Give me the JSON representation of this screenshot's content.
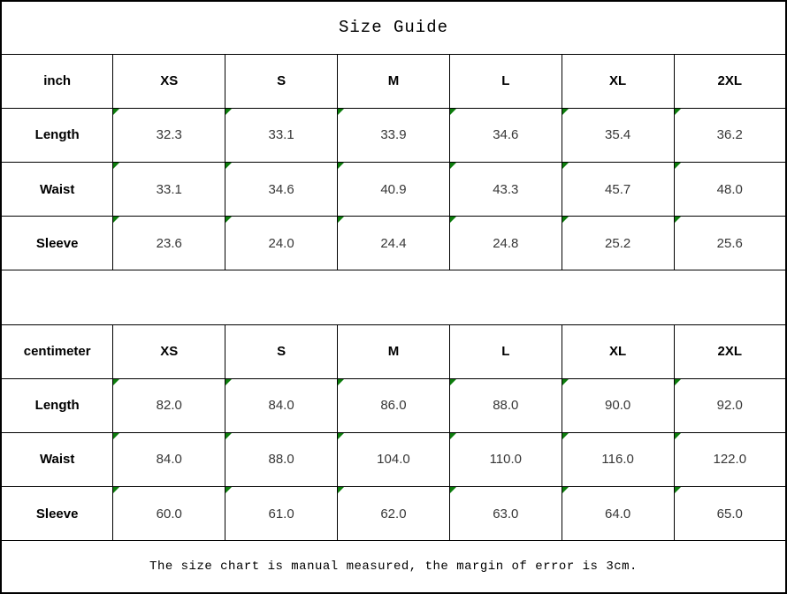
{
  "title": "Size Guide",
  "footer": "The size chart is manual measured, the margin of error is 3cm.",
  "colors": {
    "flag_triangle": "#0d7d0d",
    "border": "#000000"
  },
  "tables": [
    {
      "unit": "inch",
      "columns": [
        "XS",
        "S",
        "M",
        "L",
        "XL",
        "2XL"
      ],
      "rows": [
        {
          "label": "Length",
          "values": [
            "32.3",
            "33.1",
            "33.9",
            "34.6",
            "35.4",
            "36.2"
          ]
        },
        {
          "label": "Waist",
          "values": [
            "33.1",
            "34.6",
            "40.9",
            "43.3",
            "45.7",
            "48.0"
          ]
        },
        {
          "label": "Sleeve",
          "values": [
            "23.6",
            "24.0",
            "24.4",
            "24.8",
            "25.2",
            "25.6"
          ]
        }
      ]
    },
    {
      "unit": "centimeter",
      "columns": [
        "XS",
        "S",
        "M",
        "L",
        "XL",
        "2XL"
      ],
      "rows": [
        {
          "label": "Length",
          "values": [
            "82.0",
            "84.0",
            "86.0",
            "88.0",
            "90.0",
            "92.0"
          ]
        },
        {
          "label": "Waist",
          "values": [
            "84.0",
            "88.0",
            "104.0",
            "110.0",
            "116.0",
            "122.0"
          ]
        },
        {
          "label": "Sleeve",
          "values": [
            "60.0",
            "61.0",
            "62.0",
            "63.0",
            "64.0",
            "65.0"
          ]
        }
      ]
    }
  ]
}
